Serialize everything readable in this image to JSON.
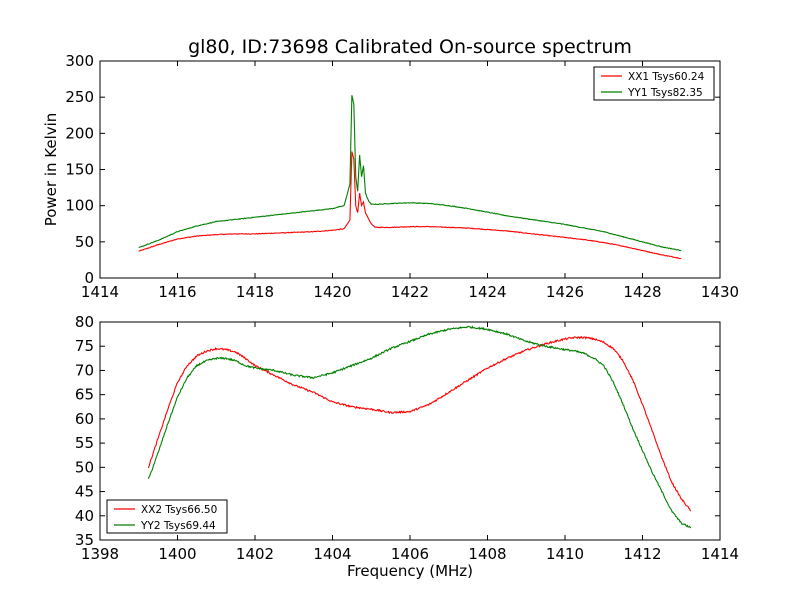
{
  "figure": {
    "title": "gl80, ID:73698 Calibrated On-source spectrum"
  },
  "chart_data": [
    {
      "type": "line",
      "title": "gl80, ID:73698 Calibrated On-source spectrum",
      "xlabel": "",
      "ylabel": "Power in Kelvin",
      "xlim": [
        1414,
        1430
      ],
      "ylim": [
        0,
        300
      ],
      "xticks": [
        1414,
        1416,
        1418,
        1420,
        1422,
        1424,
        1426,
        1428,
        1430
      ],
      "yticks": [
        0,
        50,
        100,
        150,
        200,
        250,
        300
      ],
      "grid": false,
      "legend_position": "upper right",
      "series": [
        {
          "name": "XX1 Tsys60.24",
          "color": "#ff0000",
          "x": [
            1415.0,
            1415.5,
            1416.0,
            1416.5,
            1417.0,
            1417.5,
            1418.0,
            1418.5,
            1419.0,
            1419.5,
            1420.0,
            1420.3,
            1420.45,
            1420.5,
            1420.55,
            1420.6,
            1420.65,
            1420.7,
            1420.75,
            1420.8,
            1420.85,
            1420.9,
            1420.95,
            1421.0,
            1421.1,
            1421.2,
            1421.5,
            1422.0,
            1422.5,
            1423.0,
            1423.5,
            1424.0,
            1424.5,
            1425.0,
            1425.5,
            1426.0,
            1426.5,
            1427.0,
            1427.5,
            1428.0,
            1428.5,
            1429.0
          ],
          "y": [
            37,
            46,
            54,
            58,
            60,
            61,
            61,
            62,
            63,
            64,
            66,
            68,
            80,
            175,
            165,
            100,
            90,
            117,
            100,
            105,
            90,
            85,
            80,
            75,
            70,
            70,
            70,
            71,
            71,
            70,
            69,
            67,
            65,
            62,
            59,
            56,
            53,
            49,
            44,
            38,
            32,
            27
          ]
        },
        {
          "name": "YY1 Tsys82.35",
          "color": "#008000",
          "x": [
            1415.0,
            1415.5,
            1416.0,
            1416.5,
            1417.0,
            1417.5,
            1418.0,
            1418.5,
            1419.0,
            1419.5,
            1420.0,
            1420.3,
            1420.45,
            1420.5,
            1420.55,
            1420.6,
            1420.65,
            1420.7,
            1420.75,
            1420.8,
            1420.85,
            1420.9,
            1420.95,
            1421.0,
            1421.1,
            1421.2,
            1421.5,
            1422.0,
            1422.5,
            1423.0,
            1423.5,
            1424.0,
            1424.5,
            1425.0,
            1425.5,
            1426.0,
            1426.5,
            1427.0,
            1427.5,
            1428.0,
            1428.5,
            1429.0
          ],
          "y": [
            42,
            52,
            64,
            72,
            78,
            81,
            84,
            87,
            90,
            93,
            96,
            100,
            130,
            253,
            240,
            140,
            120,
            170,
            140,
            155,
            118,
            110,
            105,
            102,
            102,
            102,
            103,
            104,
            103,
            100,
            96,
            91,
            86,
            82,
            78,
            74,
            69,
            64,
            57,
            50,
            43,
            38
          ]
        }
      ]
    },
    {
      "type": "line",
      "title": "",
      "xlabel": "Frequency (MHz)",
      "ylabel": "",
      "xlim": [
        1398,
        1414
      ],
      "ylim": [
        35,
        80
      ],
      "xticks": [
        1398,
        1400,
        1402,
        1404,
        1406,
        1408,
        1410,
        1412,
        1414
      ],
      "yticks": [
        35,
        40,
        45,
        50,
        55,
        60,
        65,
        70,
        75,
        80
      ],
      "grid": false,
      "legend_position": "lower left",
      "series": [
        {
          "name": "XX2 Tsys66.50",
          "color": "#ff0000",
          "x": [
            1399.25,
            1399.5,
            1399.75,
            1400.0,
            1400.25,
            1400.5,
            1400.75,
            1401.0,
            1401.25,
            1401.5,
            1401.75,
            1402.0,
            1402.5,
            1403.0,
            1403.5,
            1404.0,
            1404.5,
            1405.0,
            1405.5,
            1406.0,
            1406.5,
            1407.0,
            1407.5,
            1408.0,
            1408.5,
            1409.0,
            1409.5,
            1410.0,
            1410.25,
            1410.5,
            1410.75,
            1411.0,
            1411.25,
            1411.5,
            1411.75,
            1412.0,
            1412.25,
            1412.5,
            1412.75,
            1413.0,
            1413.25
          ],
          "y": [
            50,
            56,
            62,
            67.5,
            71,
            73,
            74,
            74.5,
            74.3,
            73.8,
            72.5,
            71,
            69,
            67,
            65.5,
            63.5,
            62.5,
            62,
            61.3,
            61.5,
            63,
            65.5,
            68,
            70.5,
            72.5,
            74.2,
            75.5,
            76.5,
            76.8,
            76.8,
            76.5,
            75.8,
            74.5,
            72,
            68,
            63,
            57.5,
            52,
            47,
            43.5,
            41
          ]
        },
        {
          "name": "YY2 Tsys69.44",
          "color": "#008000",
          "x": [
            1399.25,
            1399.5,
            1399.75,
            1400.0,
            1400.25,
            1400.5,
            1400.75,
            1401.0,
            1401.25,
            1401.5,
            1401.75,
            1402.0,
            1402.5,
            1403.0,
            1403.5,
            1404.0,
            1404.5,
            1405.0,
            1405.5,
            1406.0,
            1406.5,
            1407.0,
            1407.5,
            1408.0,
            1408.5,
            1409.0,
            1409.5,
            1410.0,
            1410.25,
            1410.5,
            1410.75,
            1411.0,
            1411.25,
            1411.5,
            1411.75,
            1412.0,
            1412.25,
            1412.5,
            1412.75,
            1413.0,
            1413.25
          ],
          "y": [
            47.5,
            53,
            59,
            64.5,
            68.5,
            71,
            72,
            72.5,
            72.5,
            72,
            71,
            70.5,
            70,
            69,
            68.5,
            69.5,
            71,
            72.5,
            74.5,
            76,
            77.5,
            78.5,
            79,
            78.5,
            77.5,
            76,
            75,
            74.3,
            74,
            73.5,
            72.5,
            71,
            67.5,
            63,
            58,
            53.5,
            49,
            45,
            41,
            38.5,
            37.5
          ]
        }
      ]
    }
  ]
}
